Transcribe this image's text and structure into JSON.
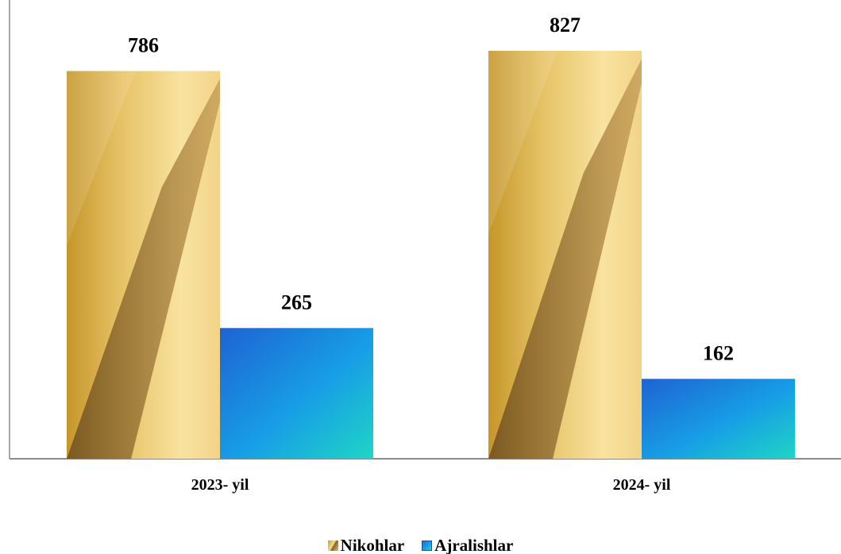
{
  "chart_data": {
    "type": "bar",
    "categories": [
      "2023- yil",
      "2024- yil"
    ],
    "series": [
      {
        "name": "Nikohlar",
        "values": [
          786,
          827
        ]
      },
      {
        "name": "Ajralishlar",
        "values": [
          265,
          162
        ]
      }
    ],
    "data_labels": true,
    "ylim": [
      0,
      930
    ],
    "grid": false,
    "legend_position": "bottom-center",
    "title": "",
    "xlabel": "",
    "ylabel": ""
  },
  "colors": {
    "nikohlar": "#d9ad4a",
    "ajralishlar": "#1a8de0",
    "axis": "#8c8c8c"
  }
}
